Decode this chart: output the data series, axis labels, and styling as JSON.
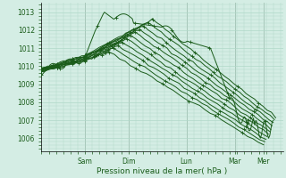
{
  "xlabel": "Pression niveau de la mer( hPa )",
  "ylim": [
    1005.3,
    1013.5
  ],
  "xlim": [
    0,
    100
  ],
  "yticks": [
    1006,
    1007,
    1008,
    1009,
    1010,
    1011,
    1012,
    1013
  ],
  "xtick_positions": [
    18,
    36,
    60,
    80,
    92
  ],
  "xtick_labels": [
    "Sam",
    "Dim",
    "Lun",
    "Mar",
    "Mer"
  ],
  "bg_color": "#d4ede4",
  "grid_color": "#b0d8c8",
  "line_color": "#1a5c1a",
  "linewidth": 0.7,
  "markersize": 2.5
}
